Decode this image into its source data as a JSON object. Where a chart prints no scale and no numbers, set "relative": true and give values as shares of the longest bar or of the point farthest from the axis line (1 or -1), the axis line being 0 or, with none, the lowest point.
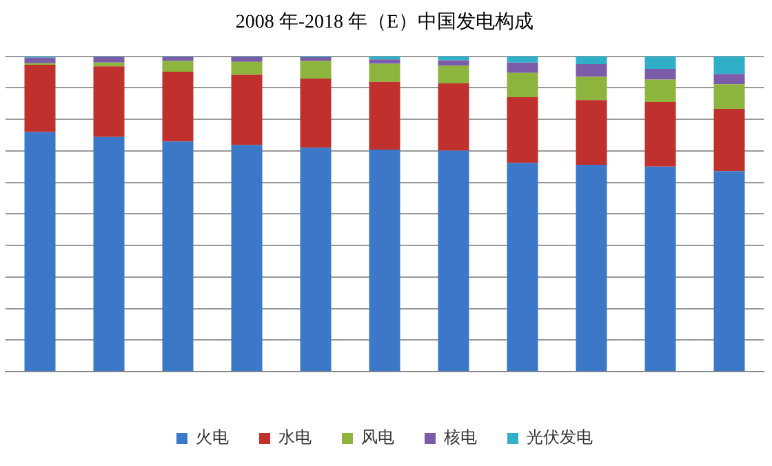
{
  "chart_data": {
    "type": "bar",
    "title": "2008 年-2018 年（E）中国发电构成",
    "stacked": true,
    "relative": true,
    "grid": "y",
    "legend": "bottom",
    "categories": [
      null,
      null,
      null,
      null,
      null,
      null,
      null,
      null,
      null,
      null,
      null
    ],
    "series": [
      {
        "name": "火电",
        "color": "#3c78c8",
        "values": [
          0.76,
          0.744,
          0.73,
          0.719,
          0.71,
          0.704,
          0.701,
          0.662,
          0.656,
          0.65,
          0.636
        ]
      },
      {
        "name": "水电",
        "color": "#c0302c",
        "values": [
          0.213,
          0.224,
          0.221,
          0.222,
          0.219,
          0.215,
          0.213,
          0.208,
          0.205,
          0.205,
          0.197
        ]
      },
      {
        "name": "风电",
        "color": "#8db43c",
        "values": [
          0.005,
          0.012,
          0.034,
          0.041,
          0.056,
          0.057,
          0.056,
          0.077,
          0.074,
          0.071,
          0.078
        ]
      },
      {
        "name": "核电",
        "color": "#7a5ca8",
        "values": [
          0.018,
          0.018,
          0.013,
          0.016,
          0.012,
          0.014,
          0.017,
          0.033,
          0.04,
          0.034,
          0.033
        ]
      },
      {
        "name": "光伏发电",
        "color": "#30b0c8",
        "values": [
          0.004,
          0.002,
          0.002,
          0.002,
          0.003,
          0.01,
          0.013,
          0.02,
          0.025,
          0.04,
          0.056
        ]
      }
    ]
  }
}
